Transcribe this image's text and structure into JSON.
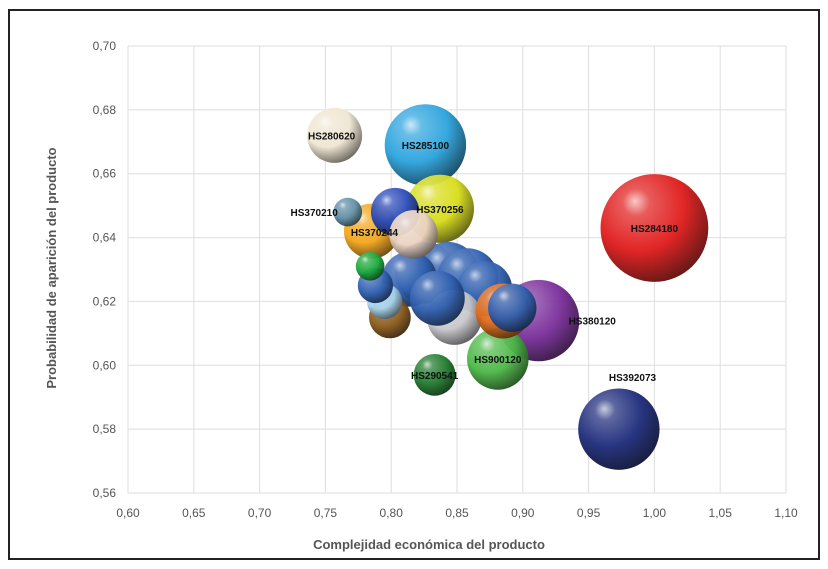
{
  "chart_data": {
    "type": "bubble",
    "title": "",
    "xlabel": "Complejidad económica del producto",
    "ylabel": "Probabilidad de aparición del producto",
    "xlim": [
      0.6,
      1.1
    ],
    "ylim": [
      0.56,
      0.7
    ],
    "x_ticks": [
      "0,60",
      "0,65",
      "0,70",
      "0,75",
      "0,80",
      "0,85",
      "0,90",
      "0,95",
      "1,00",
      "1,05",
      "1,10"
    ],
    "y_ticks": [
      "0,56",
      "0,58",
      "0,60",
      "0,62",
      "0,64",
      "0,66",
      "0,68",
      "0,70"
    ],
    "grid": true,
    "legend": "none",
    "labeled_points": [
      {
        "label": "HS280620",
        "x": 0.757,
        "y": 0.672,
        "size": 5,
        "color": "#efe6d2"
      },
      {
        "label": "HS285100",
        "x": 0.826,
        "y": 0.669,
        "size": 9,
        "color": "#2aa3dd"
      },
      {
        "label": "HS370256",
        "x": 0.837,
        "y": 0.649,
        "size": 7,
        "color": "#d7dc18"
      },
      {
        "label": "HS284180",
        "x": 1.0,
        "y": 0.643,
        "size": 13,
        "color": "#e01a1a"
      },
      {
        "label": "HS370210",
        "x": 0.767,
        "y": 0.648,
        "size": 1,
        "color": "#5f8ea6"
      },
      {
        "label": "HS370244",
        "x": 0.785,
        "y": 0.642,
        "size": 5,
        "color": "#f2a51a"
      },
      {
        "label": "HS380120",
        "x": 0.912,
        "y": 0.614,
        "size": 9,
        "color": "#7a2d9a"
      },
      {
        "label": "HS900120",
        "x": 0.881,
        "y": 0.602,
        "size": 6,
        "color": "#4bb845"
      },
      {
        "label": "HS290541",
        "x": 0.833,
        "y": 0.597,
        "size": 3,
        "color": "#1f7a2c"
      },
      {
        "label": "HS392073",
        "x": 0.973,
        "y": 0.58,
        "size": 9,
        "color": "#1c2a7a"
      }
    ],
    "unlabeled_points": [
      {
        "x": 0.803,
        "y": 0.648,
        "size": 4,
        "color": "#2848b8"
      },
      {
        "x": 0.817,
        "y": 0.641,
        "size": 4,
        "color": "#ead2c2"
      },
      {
        "x": 0.826,
        "y": 0.629,
        "size": 6,
        "color": "#2f5fb0"
      },
      {
        "x": 0.843,
        "y": 0.629,
        "size": 6,
        "color": "#2f5fb0"
      },
      {
        "x": 0.858,
        "y": 0.627,
        "size": 6,
        "color": "#2f5fb0"
      },
      {
        "x": 0.871,
        "y": 0.624,
        "size": 5,
        "color": "#2f5fb0"
      },
      {
        "x": 0.814,
        "y": 0.627,
        "size": 5,
        "color": "#2f5fb0"
      },
      {
        "x": 0.848,
        "y": 0.615,
        "size": 5,
        "color": "#c8c8cc"
      },
      {
        "x": 0.885,
        "y": 0.617,
        "size": 5,
        "color": "#e06a1a"
      },
      {
        "x": 0.892,
        "y": 0.618,
        "size": 4,
        "color": "#2f5fb0"
      },
      {
        "x": 0.799,
        "y": 0.615,
        "size": 3,
        "color": "#8a5a1a"
      },
      {
        "x": 0.795,
        "y": 0.62,
        "size": 2,
        "color": "#a8d4ee"
      },
      {
        "x": 0.784,
        "y": 0.631,
        "size": 1,
        "color": "#19a83a"
      },
      {
        "x": 0.788,
        "y": 0.625,
        "size": 2,
        "color": "#2f5fb0"
      },
      {
        "x": 0.835,
        "y": 0.621,
        "size": 5,
        "color": "#2f5fb0"
      }
    ]
  }
}
